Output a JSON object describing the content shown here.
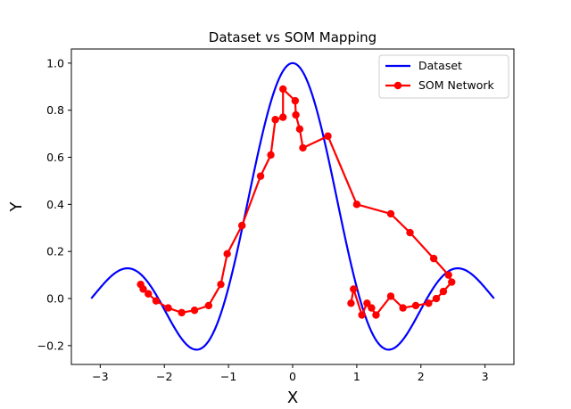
{
  "chart_data": {
    "type": "line",
    "title": "Dataset vs SOM Mapping",
    "xlabel": "X",
    "ylabel": "Y",
    "xlim": [
      -3.45,
      3.45
    ],
    "ylim": [
      -0.28,
      1.06
    ],
    "xticks": [
      -3,
      -2,
      -1,
      0,
      1,
      2,
      3
    ],
    "xtick_labels": [
      "−3",
      "−2",
      "−1",
      "0",
      "1",
      "2",
      "3"
    ],
    "yticks": [
      -0.2,
      0.0,
      0.2,
      0.4,
      0.6,
      0.8,
      1.0
    ],
    "ytick_labels": [
      "−0.2",
      "0.0",
      "0.2",
      "0.4",
      "0.6",
      "0.8",
      "1.0"
    ],
    "grid": false,
    "legend": "top-right",
    "series": [
      {
        "name": "Dataset",
        "color": "#0000ff",
        "marker": "none",
        "function": "sin(3x)/(3x) sampled on [-3.14, 3.14]"
      },
      {
        "name": "SOM Network",
        "color": "#ff0000",
        "marker": "circle",
        "points": [
          [
            -2.37,
            0.06
          ],
          [
            -2.33,
            0.04
          ],
          [
            -2.25,
            0.02
          ],
          [
            -2.13,
            -0.01
          ],
          [
            -1.94,
            -0.04
          ],
          [
            -1.73,
            -0.06
          ],
          [
            -1.53,
            -0.05
          ],
          [
            -1.31,
            -0.03
          ],
          [
            -1.12,
            0.06
          ],
          [
            -1.02,
            0.19
          ],
          [
            -0.79,
            0.31
          ],
          [
            -0.5,
            0.52
          ],
          [
            -0.34,
            0.61
          ],
          [
            -0.27,
            0.76
          ],
          [
            -0.15,
            0.77
          ],
          [
            -0.15,
            0.89
          ],
          [
            0.04,
            0.84
          ],
          [
            0.05,
            0.78
          ],
          [
            0.11,
            0.72
          ],
          [
            0.16,
            0.64
          ],
          [
            0.55,
            0.69
          ],
          [
            1.0,
            0.4
          ],
          [
            1.53,
            0.36
          ],
          [
            1.83,
            0.28
          ],
          [
            2.2,
            0.17
          ],
          [
            2.43,
            0.1
          ],
          [
            2.48,
            0.07
          ],
          [
            2.35,
            0.03
          ],
          [
            2.24,
            0.0
          ],
          [
            2.12,
            -0.02
          ],
          [
            1.92,
            -0.03
          ],
          [
            1.72,
            -0.04
          ],
          [
            1.53,
            0.01
          ],
          [
            1.3,
            -0.07
          ],
          [
            1.23,
            -0.04
          ],
          [
            1.16,
            -0.02
          ],
          [
            1.08,
            -0.07
          ],
          [
            0.95,
            0.04
          ],
          [
            0.91,
            -0.02
          ]
        ]
      }
    ]
  }
}
